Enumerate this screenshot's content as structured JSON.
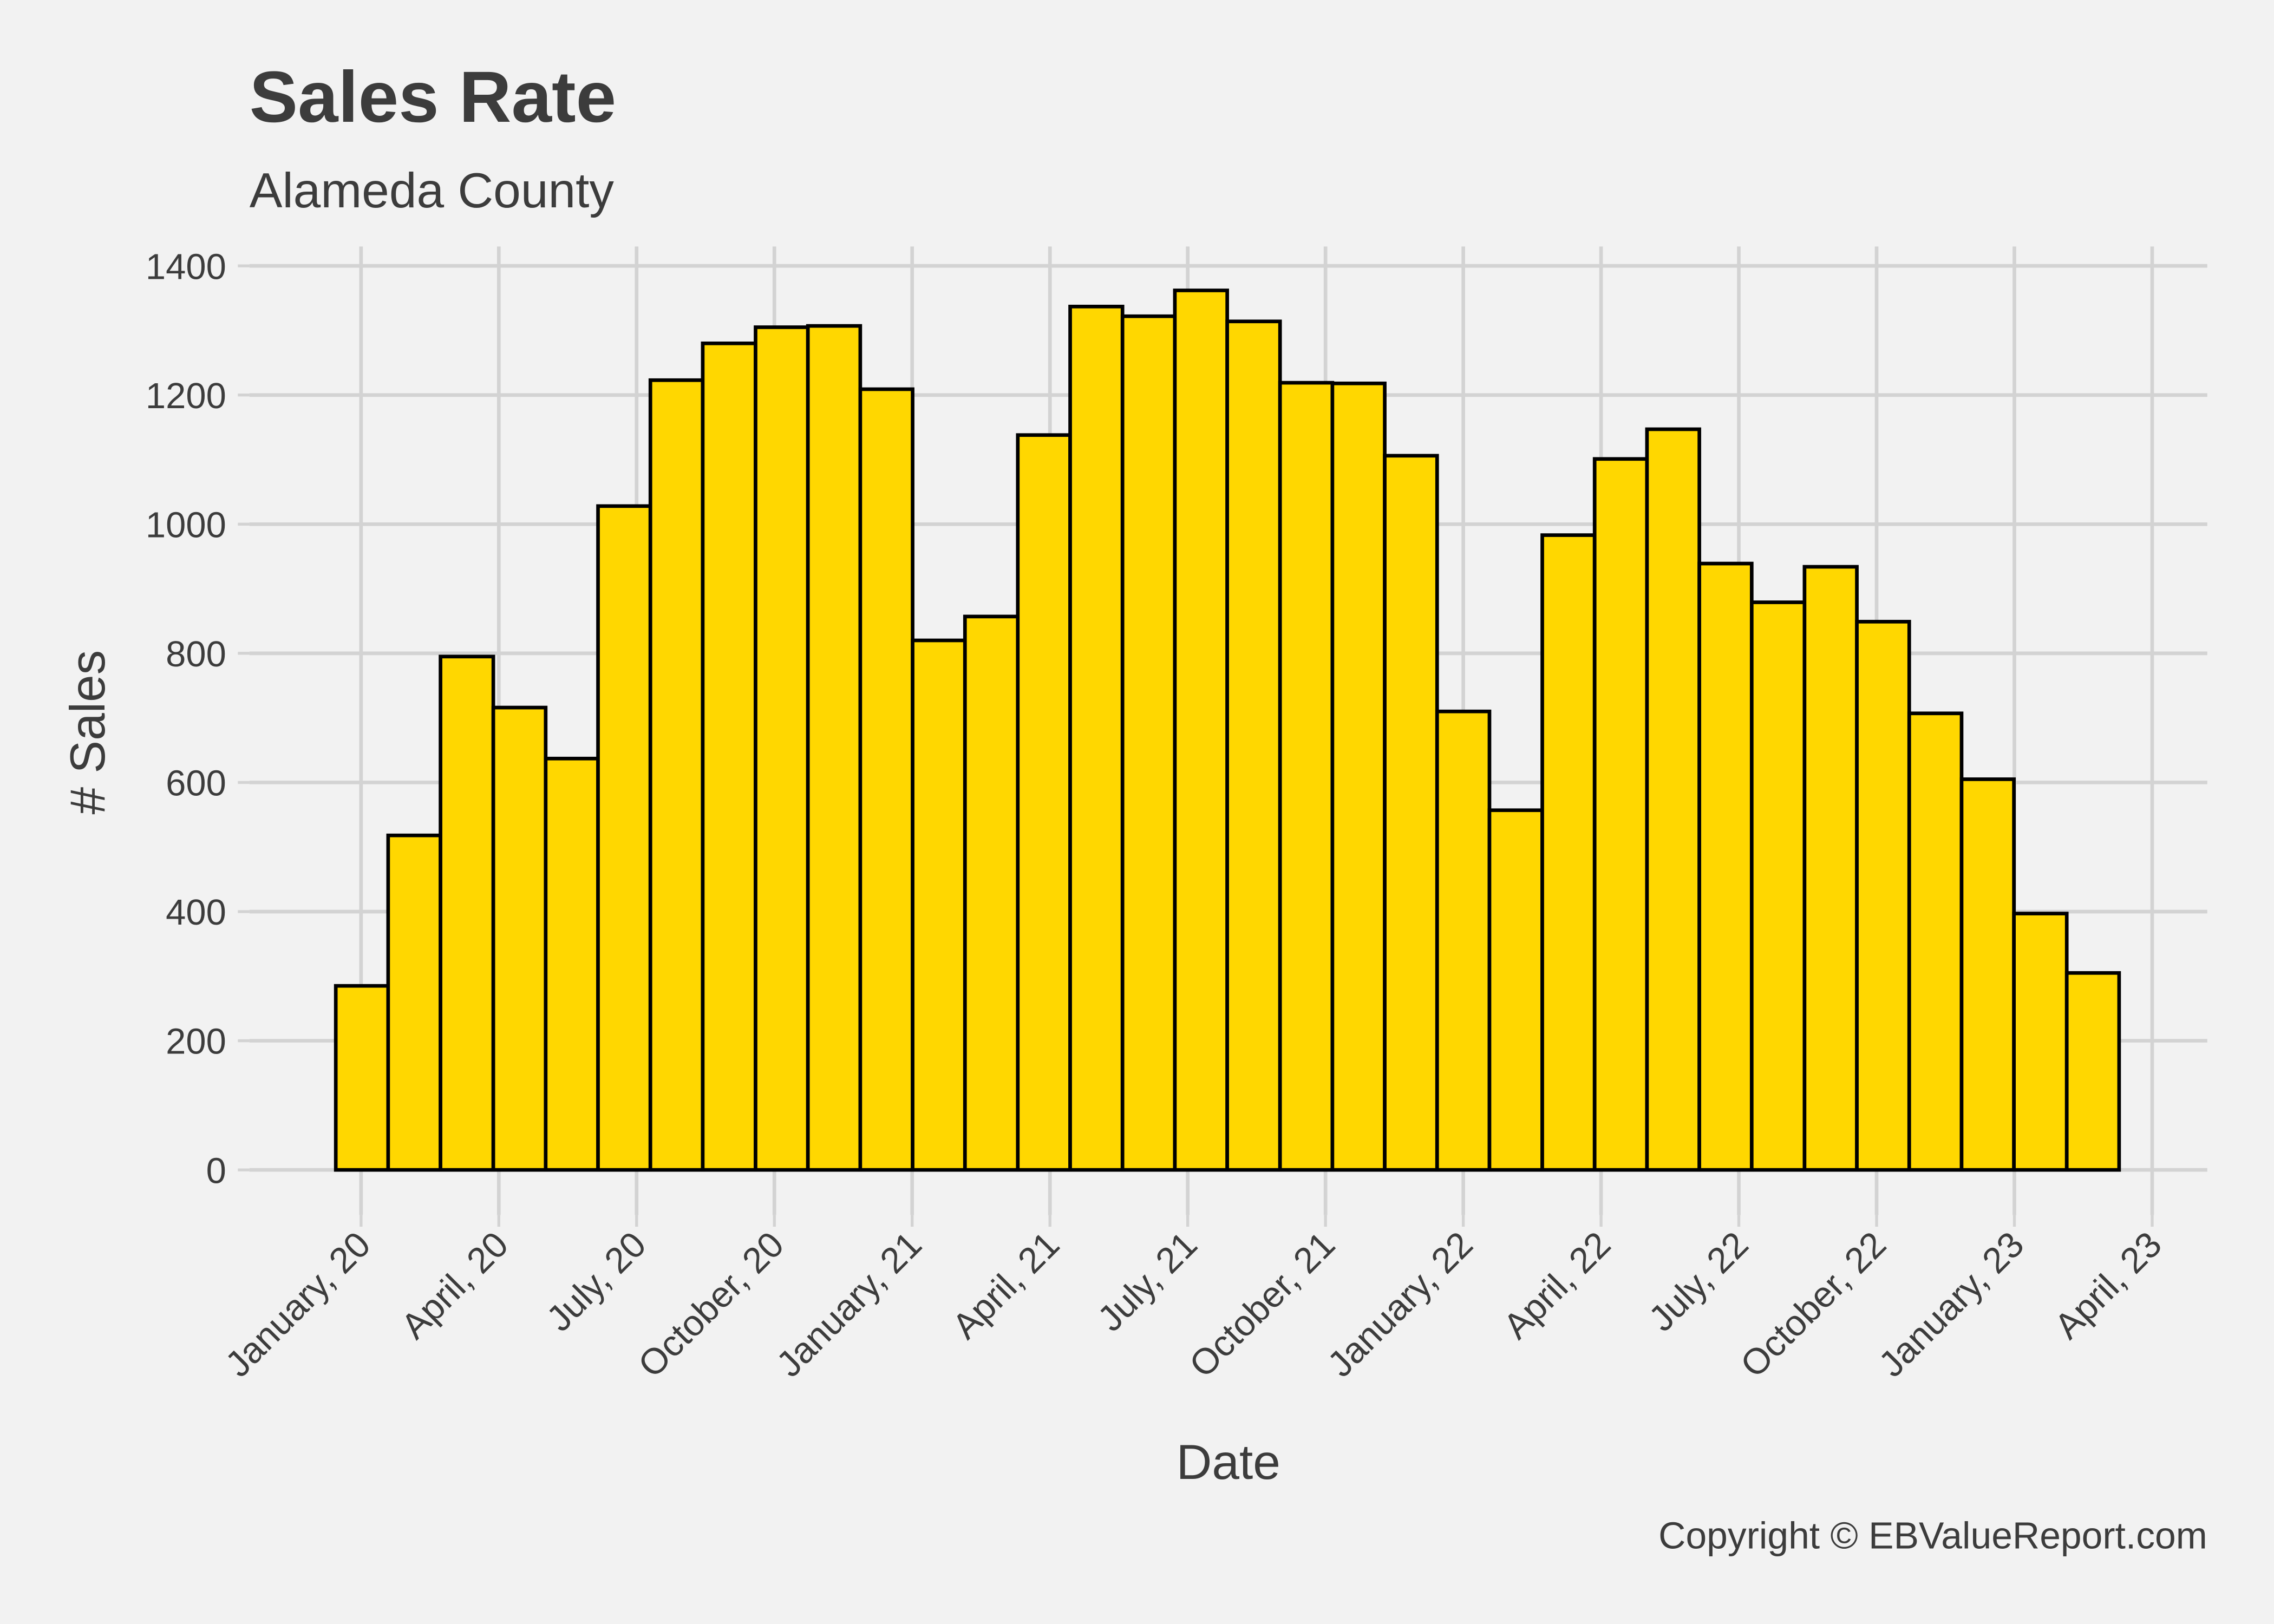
{
  "chart_data": {
    "type": "histogram",
    "title": "Sales Rate",
    "subtitle": "Alameda County",
    "x_label": "Date",
    "y_label": "# Sales",
    "caption": "Copyright  © EBValueReport.com",
    "bins": [
      -0.55,
      0.59,
      1.73,
      2.88,
      4.02,
      5.16,
      6.3,
      7.44,
      8.59,
      9.73,
      10.87,
      12.01,
      13.15,
      14.3,
      15.44,
      16.58,
      17.72,
      18.86,
      20.01,
      21.15,
      22.29,
      23.43,
      24.57,
      25.72,
      26.86,
      28.0,
      29.14,
      30.28,
      31.43,
      32.57,
      33.71,
      34.85,
      35.99,
      37.14,
      38.28
    ],
    "values": [
      285,
      518,
      795,
      716,
      637,
      1028,
      1223,
      1280,
      1305,
      1307,
      1209,
      820,
      857,
      1138,
      1337,
      1322,
      1362,
      1314,
      1219,
      1218,
      1106,
      710,
      557,
      983,
      1101,
      1147,
      939,
      879,
      934,
      849,
      707,
      605,
      397,
      305
    ],
    "color": "#ffd700",
    "edge_color": "#000000",
    "xlim": [
      -2.43,
      40.2
    ],
    "xticks": [
      {
        "value": 0,
        "label": "January, 20"
      },
      {
        "value": 3,
        "label": "April, 20"
      },
      {
        "value": 6,
        "label": "July, 20"
      },
      {
        "value": 9,
        "label": "October, 20"
      },
      {
        "value": 12,
        "label": "January, 21"
      },
      {
        "value": 15,
        "label": "April, 21"
      },
      {
        "value": 18,
        "label": "July, 21"
      },
      {
        "value": 21,
        "label": "October, 21"
      },
      {
        "value": 24,
        "label": "January, 22"
      },
      {
        "value": 27,
        "label": "April, 22"
      },
      {
        "value": 30,
        "label": "July, 22"
      },
      {
        "value": 33,
        "label": "October, 22"
      },
      {
        "value": 36,
        "label": "January, 23"
      },
      {
        "value": 39,
        "label": "April, 23"
      }
    ],
    "ylim": [
      -70,
      1430
    ],
    "yticks": [
      0,
      200,
      400,
      600,
      800,
      1000,
      1200,
      1400
    ],
    "grid": true
  }
}
